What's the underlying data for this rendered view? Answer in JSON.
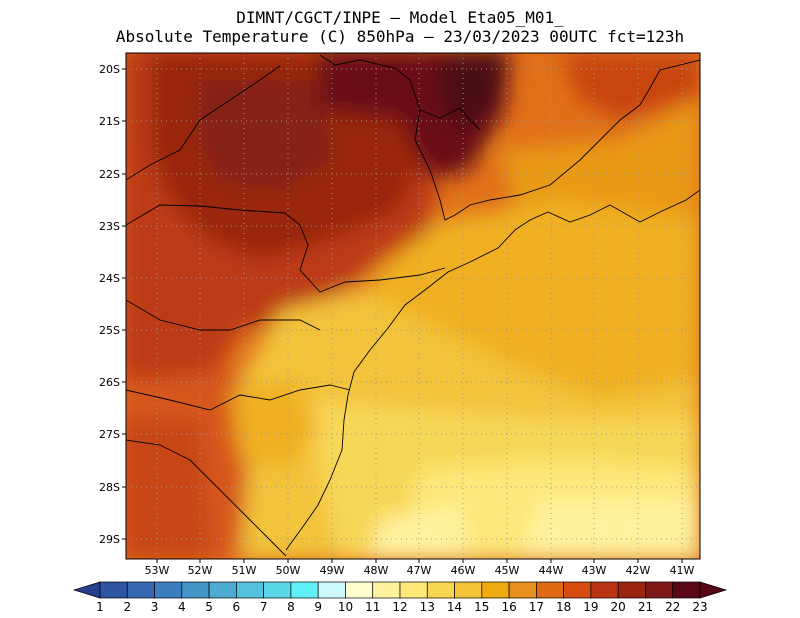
{
  "header": {
    "line1": "DIMNT/CGCT/INPE –  Model Eta05_M01_",
    "line2": "Absolute Temperature (C) 850hPa –  23/03/2023 00UTC fct=123h"
  },
  "map": {
    "lat_labels": [
      "20S",
      "21S",
      "22S",
      "23S",
      "24S",
      "25S",
      "26S",
      "27S",
      "28S",
      "29S"
    ],
    "lon_labels": [
      "53W",
      "52W",
      "51W",
      "50W",
      "49W",
      "48W",
      "47W",
      "46W",
      "45W",
      "44W",
      "43W",
      "42W",
      "41W"
    ]
  },
  "colorbar": {
    "labels": [
      "1",
      "2",
      "3",
      "4",
      "5",
      "6",
      "7",
      "8",
      "9",
      "10",
      "11",
      "12",
      "13",
      "14",
      "15",
      "16",
      "17",
      "18",
      "19",
      "20",
      "21",
      "22",
      "23"
    ],
    "colors": [
      "#24408f",
      "#2d55a3",
      "#3568b0",
      "#3d7fbe",
      "#4595c9",
      "#4eabd4",
      "#55c2de",
      "#5ad8e8",
      "#60f0f8",
      "#cdfafc",
      "#ffffd0",
      "#fff3a0",
      "#fde878",
      "#f8d750",
      "#f3c338",
      "#eeaa10",
      "#e8901e",
      "#e06a14",
      "#d44c10",
      "#b83412",
      "#9a2410",
      "#7e1818",
      "#5a0818"
    ]
  }
}
